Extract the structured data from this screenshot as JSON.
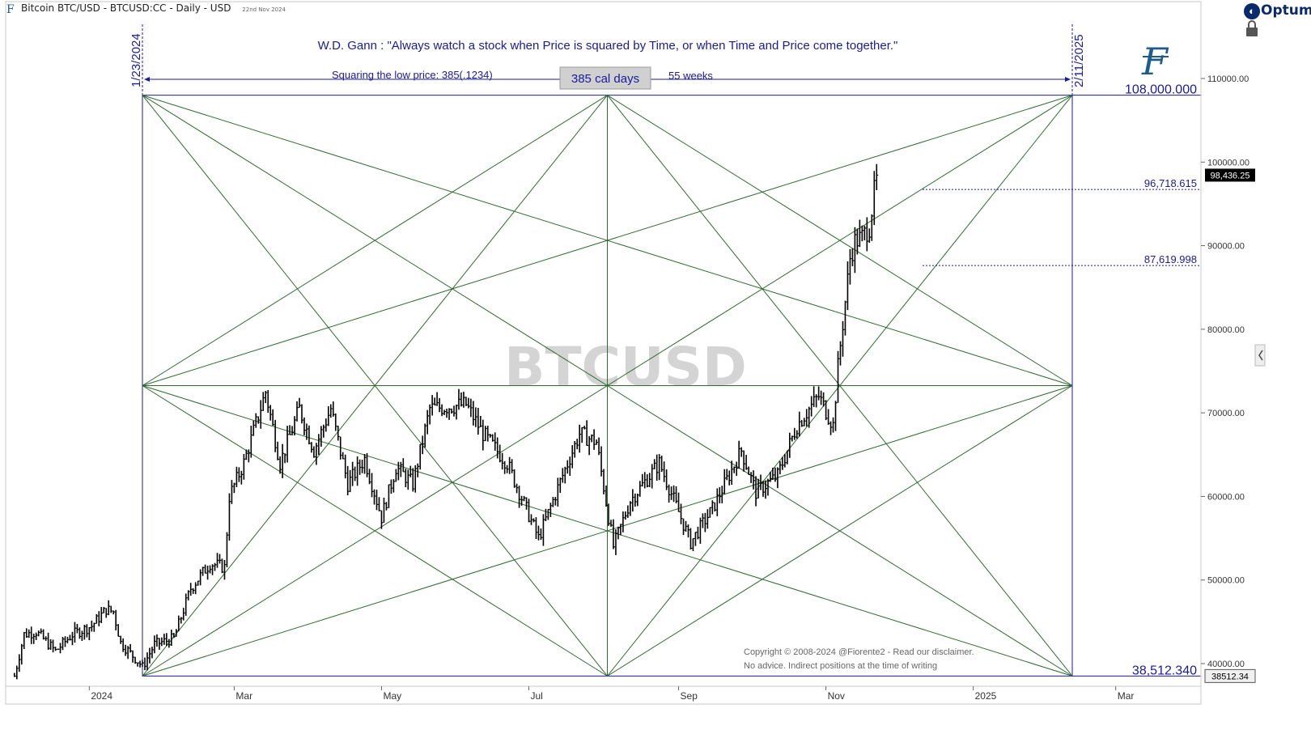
{
  "header": {
    "title": "Bitcoin BTC/USD - BTCUSD:CC - Daily - USD",
    "date": "22nd Nov 2024"
  },
  "brand": {
    "name": "Optuma"
  },
  "icons": {
    "app": "f-logo-icon",
    "brand": "optuma-logo-icon",
    "lock": "lock-icon",
    "collapse": "chevron-left-icon",
    "watermark_logo": "fiorente-f-logo-icon"
  },
  "colors": {
    "grid_line": "#2e6b2e",
    "annotation": "#1a1a9c",
    "price_bar": "#000000",
    "watermark": "#d4d4d4"
  },
  "annotations": {
    "quote": "W.D. Gann : \"Always watch a stock when Price is squared by Time, or when Time and Price come together.\"",
    "squaring": "Squaring the low price: 385(.1234)",
    "cal_days": "385 cal days",
    "weeks": "55 weeks",
    "start_date": "1/23/2024",
    "end_date": "2/11/2025",
    "high_label": "108,000.000",
    "low_label": "38,512.340",
    "level_1": "96,718.615",
    "level_2": "87,619.998",
    "last_price": "98,436.25",
    "low_tag": "38512.34",
    "watermark": "BTCUSD",
    "copyright_1": "Copyright © 2008-2024 @Fiorente2 -  Read our disclaimer.",
    "copyright_2": "No advice. Indirect positions at the time of writing"
  },
  "chart_data": {
    "type": "bar",
    "title": "Bitcoin BTC/USD - BTCUSD:CC - Daily - USD",
    "y_axis": {
      "range": [
        37000,
        116000
      ],
      "ticks": [
        {
          "value": 40000,
          "label": "40000.00"
        },
        {
          "value": 50000,
          "label": "50000.00"
        },
        {
          "value": 60000,
          "label": "60000.00"
        },
        {
          "value": 70000,
          "label": "70000.00"
        },
        {
          "value": 80000,
          "label": "80000.00"
        },
        {
          "value": 90000,
          "label": "90000.00"
        },
        {
          "value": 100000,
          "label": "100000.00"
        },
        {
          "value": 110000,
          "label": "110000.00"
        }
      ]
    },
    "x_axis": {
      "range": [
        "2023-12-01",
        "2025-03-20"
      ],
      "ticks": [
        {
          "date": "2024-01-01",
          "label": "2024"
        },
        {
          "date": "2024-03-01",
          "label": "Mar"
        },
        {
          "date": "2024-05-01",
          "label": "May"
        },
        {
          "date": "2024-07-01",
          "label": "Jul"
        },
        {
          "date": "2024-09-01",
          "label": "Sep"
        },
        {
          "date": "2024-11-01",
          "label": "Nov"
        },
        {
          "date": "2025-01-01",
          "label": "2025"
        },
        {
          "date": "2025-03-01",
          "label": "Mar"
        }
      ]
    },
    "gann_box": {
      "start_date": "2024-01-23",
      "end_date": "2025-02-11",
      "low": 38512.34,
      "high": 108000
    },
    "horizontal_levels": [
      96718.615,
      87619.998
    ],
    "price_path": {
      "description": "approximate daily closes, interpolated between anchors",
      "anchors": [
        [
          "2023-12-01",
          38500
        ],
        [
          "2023-12-05",
          43500
        ],
        [
          "2023-12-10",
          43800
        ],
        [
          "2023-12-18",
          41500
        ],
        [
          "2023-12-25",
          43500
        ],
        [
          "2024-01-02",
          44500
        ],
        [
          "2024-01-08",
          46500
        ],
        [
          "2024-01-11",
          46200
        ],
        [
          "2024-01-14",
          42500
        ],
        [
          "2024-01-22",
          40000
        ],
        [
          "2024-01-23",
          39600
        ],
        [
          "2024-01-28",
          42300
        ],
        [
          "2024-02-05",
          43000
        ],
        [
          "2024-02-12",
          49000
        ],
        [
          "2024-02-20",
          52000
        ],
        [
          "2024-02-26",
          51500
        ],
        [
          "2024-02-28",
          60000
        ],
        [
          "2024-03-05",
          64000
        ],
        [
          "2024-03-14",
          72500
        ],
        [
          "2024-03-20",
          64000
        ],
        [
          "2024-03-28",
          70500
        ],
        [
          "2024-04-03",
          65500
        ],
        [
          "2024-04-10",
          70500
        ],
        [
          "2024-04-17",
          61500
        ],
        [
          "2024-04-24",
          64500
        ],
        [
          "2024-05-01",
          57500
        ],
        [
          "2024-05-07",
          63500
        ],
        [
          "2024-05-14",
          61500
        ],
        [
          "2024-05-21",
          70500
        ],
        [
          "2024-06-05",
          71000
        ],
        [
          "2024-06-12",
          67500
        ],
        [
          "2024-06-22",
          64000
        ],
        [
          "2024-07-05",
          55000
        ],
        [
          "2024-07-15",
          62500
        ],
        [
          "2024-07-22",
          67500
        ],
        [
          "2024-07-29",
          66500
        ],
        [
          "2024-08-05",
          54000
        ],
        [
          "2024-08-12",
          59500
        ],
        [
          "2024-08-24",
          64000
        ],
        [
          "2024-09-06",
          54500
        ],
        [
          "2024-09-15",
          58500
        ],
        [
          "2024-09-27",
          65500
        ],
        [
          "2024-10-03",
          60500
        ],
        [
          "2024-10-12",
          62500
        ],
        [
          "2024-10-20",
          68500
        ],
        [
          "2024-10-29",
          72000
        ],
        [
          "2024-11-04",
          68500
        ],
        [
          "2024-11-06",
          75500
        ],
        [
          "2024-11-11",
          88500
        ],
        [
          "2024-11-13",
          90500
        ],
        [
          "2024-11-16",
          91000
        ],
        [
          "2024-11-19",
          92300
        ],
        [
          "2024-11-22",
          98436.25
        ]
      ]
    }
  }
}
